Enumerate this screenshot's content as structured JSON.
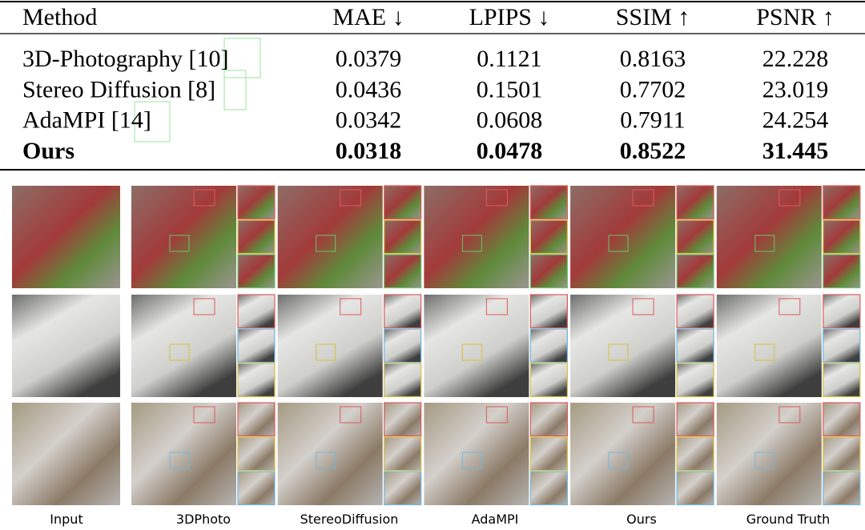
{
  "table": {
    "header": [
      "Method",
      "MAE ↓",
      "LPIPS ↓",
      "SSIM ↑",
      "PSNR ↑"
    ],
    "rows": [
      [
        "3D-Photography [10]",
        "0.0379",
        "0.1121",
        "0.8163",
        "22.228"
      ],
      [
        "Stereo Diffusion [8]",
        "0.0436",
        "0.1501",
        "0.7702",
        "23.019"
      ],
      [
        "AdaMPI [14]",
        "0.0342",
        "0.0608",
        "0.7911",
        "24.254"
      ],
      [
        "Ours",
        "0.0318",
        "0.0478",
        "0.8522",
        "31.445"
      ]
    ]
  },
  "captions": [
    "Input",
    "3DPhoto",
    "StereoDiffusion",
    "AdaMPI",
    "Ours",
    "Ground Truth"
  ]
}
